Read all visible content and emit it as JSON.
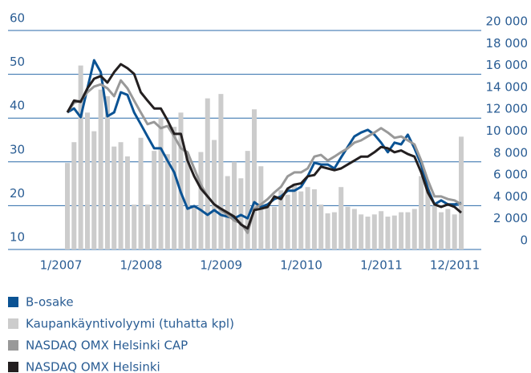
{
  "chart_data": {
    "type": "line",
    "categories": [
      "1/2007",
      null,
      null,
      null,
      null,
      null,
      null,
      null,
      null,
      null,
      null,
      null,
      "1/2008",
      null,
      null,
      null,
      null,
      null,
      null,
      null,
      null,
      null,
      null,
      null,
      "1/2009",
      null,
      null,
      null,
      null,
      null,
      null,
      null,
      null,
      null,
      null,
      null,
      "1/2010",
      null,
      null,
      null,
      null,
      null,
      null,
      null,
      null,
      null,
      null,
      null,
      "1/2011",
      null,
      null,
      null,
      null,
      null,
      null,
      null,
      null,
      null,
      null,
      "12/2011"
    ],
    "series": [
      {
        "name": "B-osake",
        "color": "#0b5394",
        "type": "line",
        "values": [
          41.3,
          42.2,
          40.2,
          46.8,
          53.2,
          50.5,
          40.4,
          41.3,
          45.9,
          45.3,
          41.3,
          38.6,
          35.8,
          33.1,
          33.1,
          30.3,
          27.6,
          23.0,
          19.3,
          19.9,
          19.0,
          17.9,
          19.0,
          17.9,
          17.5,
          17.1,
          17.9,
          17.1,
          20.8,
          19.7,
          20.3,
          21.5,
          22.1,
          23.4,
          23.4,
          24.3,
          26.7,
          29.8,
          29.4,
          29.4,
          28.5,
          31.0,
          33.4,
          35.8,
          36.7,
          37.3,
          36.2,
          34.4,
          32.2,
          34.4,
          34.0,
          36.2,
          33.1,
          29.4,
          23.9,
          20.3,
          21.2,
          20.3,
          20.3,
          20.6
        ]
      },
      {
        "name": "Kaupankäyntivolyymi (tuhatta kpl)",
        "color": "#cccccc",
        "type": "bar",
        "axis": "y2",
        "values": [
          7900,
          9800,
          16800,
          12500,
          10800,
          14600,
          14000,
          9400,
          9800,
          8500,
          4100,
          10200,
          4100,
          9000,
          12000,
          8700,
          11200,
          12500,
          8700,
          4000,
          8900,
          13800,
          10000,
          14200,
          6700,
          8000,
          6500,
          9000,
          12800,
          7600,
          3900,
          3900,
          5400,
          5000,
          6000,
          5300,
          5700,
          5500,
          4100,
          3300,
          3400,
          5700,
          3900,
          3700,
          3200,
          3000,
          3200,
          3500,
          3000,
          3100,
          3400,
          3400,
          3700,
          6700,
          6100,
          4000,
          3400,
          3700,
          3200,
          10300
        ]
      },
      {
        "name": "NASDAQ OMX Helsinki CAP",
        "color": "#999999",
        "type": "line",
        "values": [
          41.3,
          43.5,
          44.0,
          45.9,
          47.2,
          47.7,
          46.8,
          45.0,
          48.6,
          46.8,
          44.0,
          41.3,
          38.6,
          39.1,
          37.7,
          38.2,
          35.8,
          33.1,
          32.2,
          28.5,
          24.8,
          22.1,
          20.3,
          19.0,
          17.9,
          16.6,
          16.0,
          13.8,
          19.3,
          20.3,
          21.5,
          23.0,
          24.3,
          26.7,
          27.6,
          27.6,
          28.5,
          31.2,
          31.6,
          30.3,
          31.2,
          32.2,
          33.1,
          34.4,
          34.9,
          35.8,
          36.7,
          37.7,
          36.7,
          35.5,
          35.8,
          34.9,
          34.0,
          30.3,
          25.8,
          22.1,
          22.1,
          21.5,
          21.2,
          20.3
        ]
      },
      {
        "name": "NASDAQ OMX Helsinki",
        "color": "#231f20",
        "type": "line",
        "values": [
          41.3,
          44.0,
          43.7,
          46.8,
          49.0,
          49.6,
          48.1,
          50.5,
          52.3,
          51.4,
          50.1,
          45.9,
          44.0,
          42.2,
          42.2,
          39.5,
          36.4,
          36.4,
          30.3,
          26.7,
          23.9,
          22.1,
          20.3,
          19.3,
          18.4,
          17.5,
          15.7,
          14.8,
          19.0,
          19.3,
          19.7,
          22.1,
          21.5,
          23.9,
          24.8,
          25.1,
          26.7,
          27.0,
          28.9,
          28.5,
          28.1,
          28.5,
          29.4,
          30.3,
          31.2,
          31.2,
          32.2,
          33.4,
          33.1,
          32.2,
          32.6,
          31.8,
          31.2,
          27.6,
          23.0,
          20.3,
          19.7,
          20.3,
          19.7,
          18.4
        ]
      }
    ],
    "ylim": [
      10,
      60
    ],
    "yticks": [
      10,
      20,
      30,
      40,
      50,
      60
    ],
    "y2lim": [
      0,
      20000
    ],
    "y2ticks": [
      0,
      {
        "value": 2000,
        "label": "2 000"
      },
      {
        "value": 4000,
        "label": "4 000"
      },
      {
        "value": 6000,
        "label": "6 000"
      },
      {
        "value": 8000,
        "label": "8 000"
      },
      {
        "value": 10000,
        "label": "10 000"
      },
      {
        "value": 12000,
        "label": "12 000"
      },
      {
        "value": 14000,
        "label": "14 000"
      },
      {
        "value": 16000,
        "label": "16 000"
      },
      {
        "value": 18000,
        "label": "18 000"
      },
      {
        "value": 20000,
        "label": "20 000"
      }
    ],
    "grid": true,
    "legend": "bottom"
  }
}
